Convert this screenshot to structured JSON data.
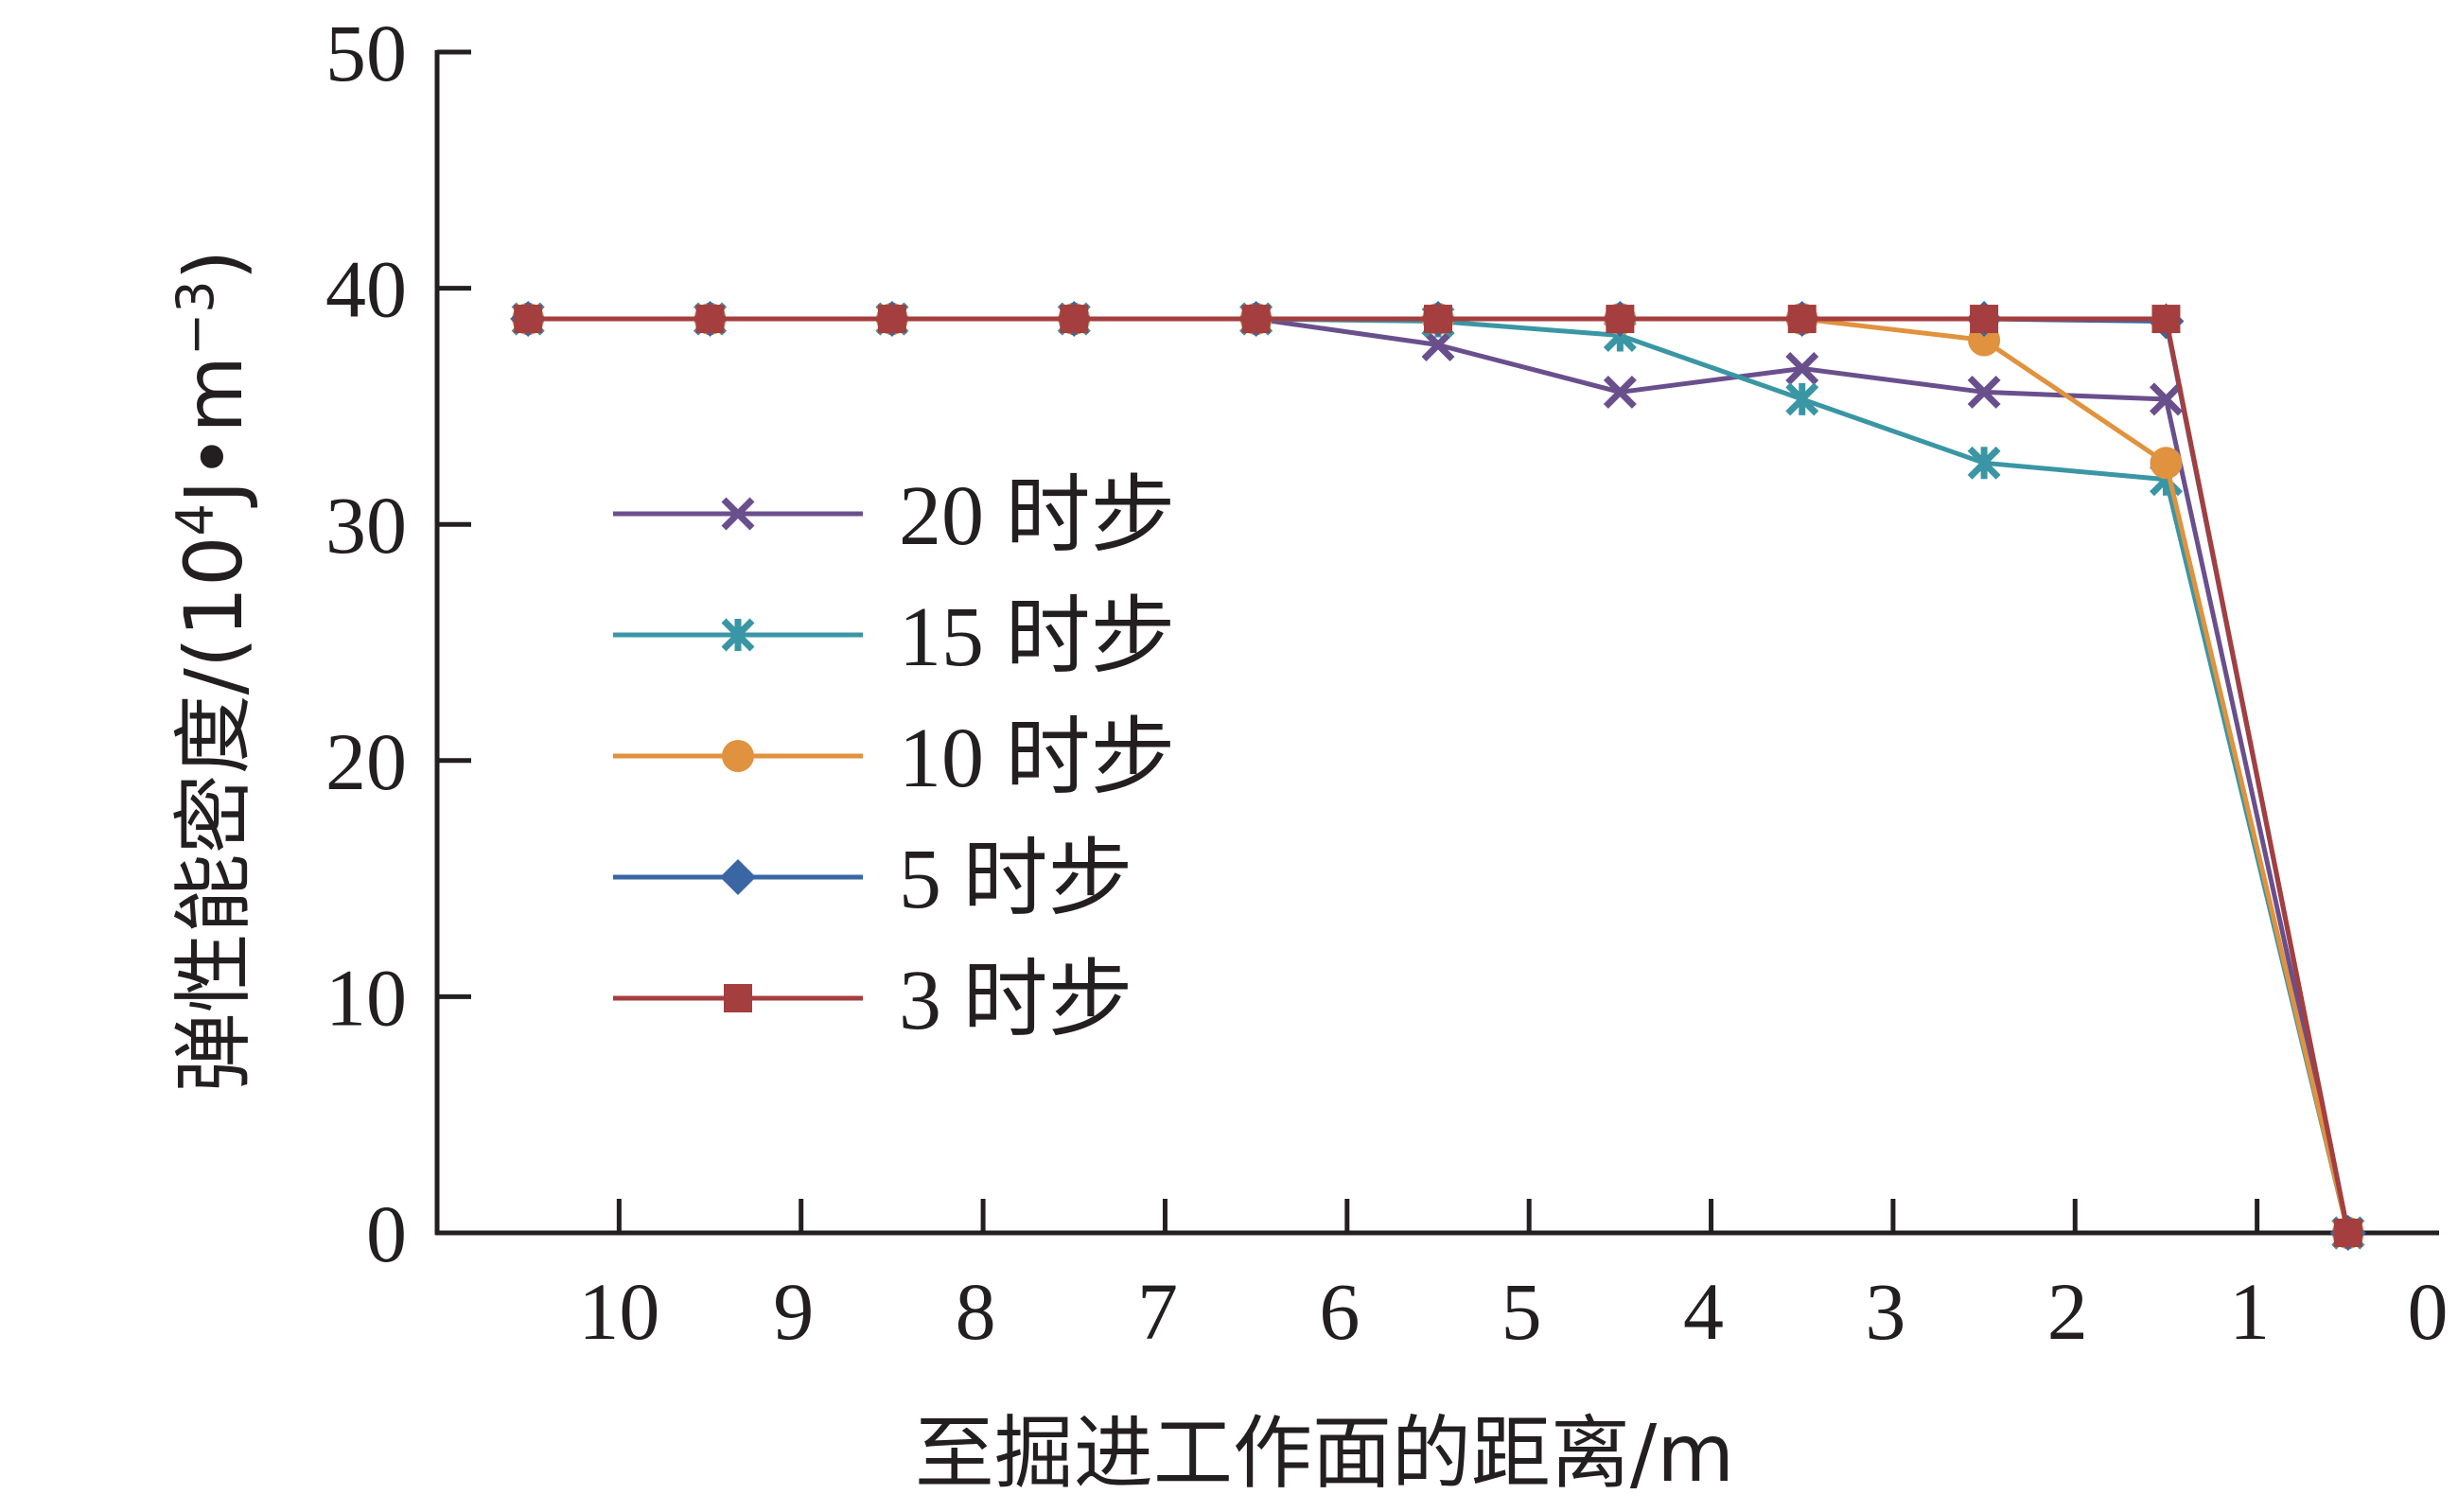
{
  "chart_data": {
    "type": "line",
    "xlabel": "至掘进工作面的距离/m",
    "ylabel_main": "弹性能密度/(10",
    "ylabel_exp": "4",
    "ylabel_mid": "J•m",
    "ylabel_exp2": "−3",
    "ylabel_end": ")",
    "xlim": [
      11,
      0
    ],
    "ylim": [
      0,
      50
    ],
    "x_ticks": [
      10,
      9,
      8,
      7,
      6,
      5,
      4,
      3,
      2,
      1,
      0
    ],
    "y_ticks": [
      0,
      10,
      20,
      30,
      40,
      50
    ],
    "x": [
      10.5,
      9.5,
      8.5,
      7.5,
      6.5,
      5.5,
      4.5,
      3.5,
      2.5,
      1.5,
      0.5
    ],
    "grid": false,
    "legend_position": "left-middle",
    "series": [
      {
        "name": "20 时步",
        "color": "#6a4f8d",
        "marker": "x",
        "values": [
          38.7,
          38.7,
          38.7,
          38.7,
          38.7,
          37.6,
          35.6,
          36.6,
          35.6,
          35.3,
          0
        ]
      },
      {
        "name": "15 时步",
        "color": "#3a96a4",
        "marker": "star",
        "values": [
          38.7,
          38.7,
          38.7,
          38.7,
          38.7,
          38.6,
          38.0,
          35.3,
          32.6,
          31.9,
          0
        ]
      },
      {
        "name": "10 时步",
        "color": "#e0923e",
        "marker": "circle",
        "values": [
          38.7,
          38.7,
          38.7,
          38.7,
          38.7,
          38.7,
          38.7,
          38.7,
          37.8,
          32.6,
          0
        ]
      },
      {
        "name": "5 时步",
        "color": "#3a66a4",
        "marker": "diamond",
        "values": [
          38.7,
          38.7,
          38.7,
          38.7,
          38.7,
          38.7,
          38.7,
          38.7,
          38.7,
          38.6,
          0
        ]
      },
      {
        "name": "3 时步",
        "color": "#a53e3e",
        "marker": "square",
        "values": [
          38.7,
          38.7,
          38.7,
          38.7,
          38.7,
          38.7,
          38.7,
          38.7,
          38.7,
          38.7,
          0
        ]
      }
    ]
  }
}
